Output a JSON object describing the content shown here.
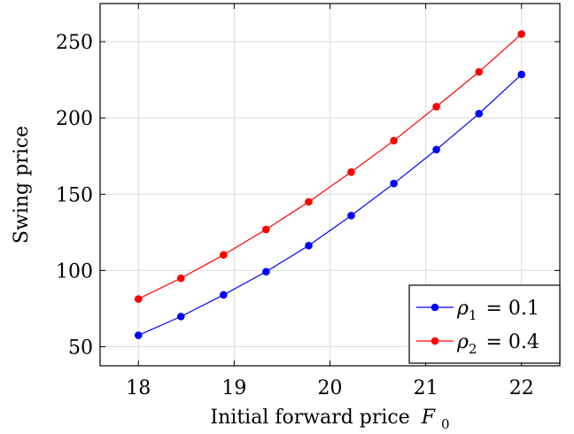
{
  "chart_data": {
    "type": "line",
    "xlabel_text": "Initial forward price",
    "xlabel_var": "F",
    "xlabel_sub": "0",
    "ylabel": "Swing price",
    "xlim": [
      17.6,
      22.4
    ],
    "ylim": [
      37.5,
      275
    ],
    "x_ticks": [
      18,
      19,
      20,
      21,
      22
    ],
    "y_ticks": [
      50,
      100,
      150,
      200,
      250
    ],
    "grid": true,
    "legend_position": "bottom-right",
    "x": [
      18,
      18.444,
      18.889,
      19.333,
      19.778,
      20.222,
      20.667,
      21.111,
      21.556,
      22
    ],
    "series": [
      {
        "name": "ρ1 = 0.1",
        "legend_symbol": "ρ",
        "legend_sub": "1",
        "legend_value": "= 0.1",
        "color": "#0000ff",
        "values": [
          57.5,
          69.8,
          84.0,
          99.2,
          116.3,
          136.0,
          157.0,
          179.2,
          202.8,
          228.5
        ]
      },
      {
        "name": "ρ2 = 0.4",
        "legend_symbol": "ρ",
        "legend_sub": "2",
        "legend_value": "= 0.4",
        "color": "#ff0000",
        "values": [
          81.3,
          94.9,
          110.2,
          126.9,
          145.0,
          164.5,
          185.1,
          207.4,
          230.2,
          255.0
        ]
      }
    ]
  }
}
